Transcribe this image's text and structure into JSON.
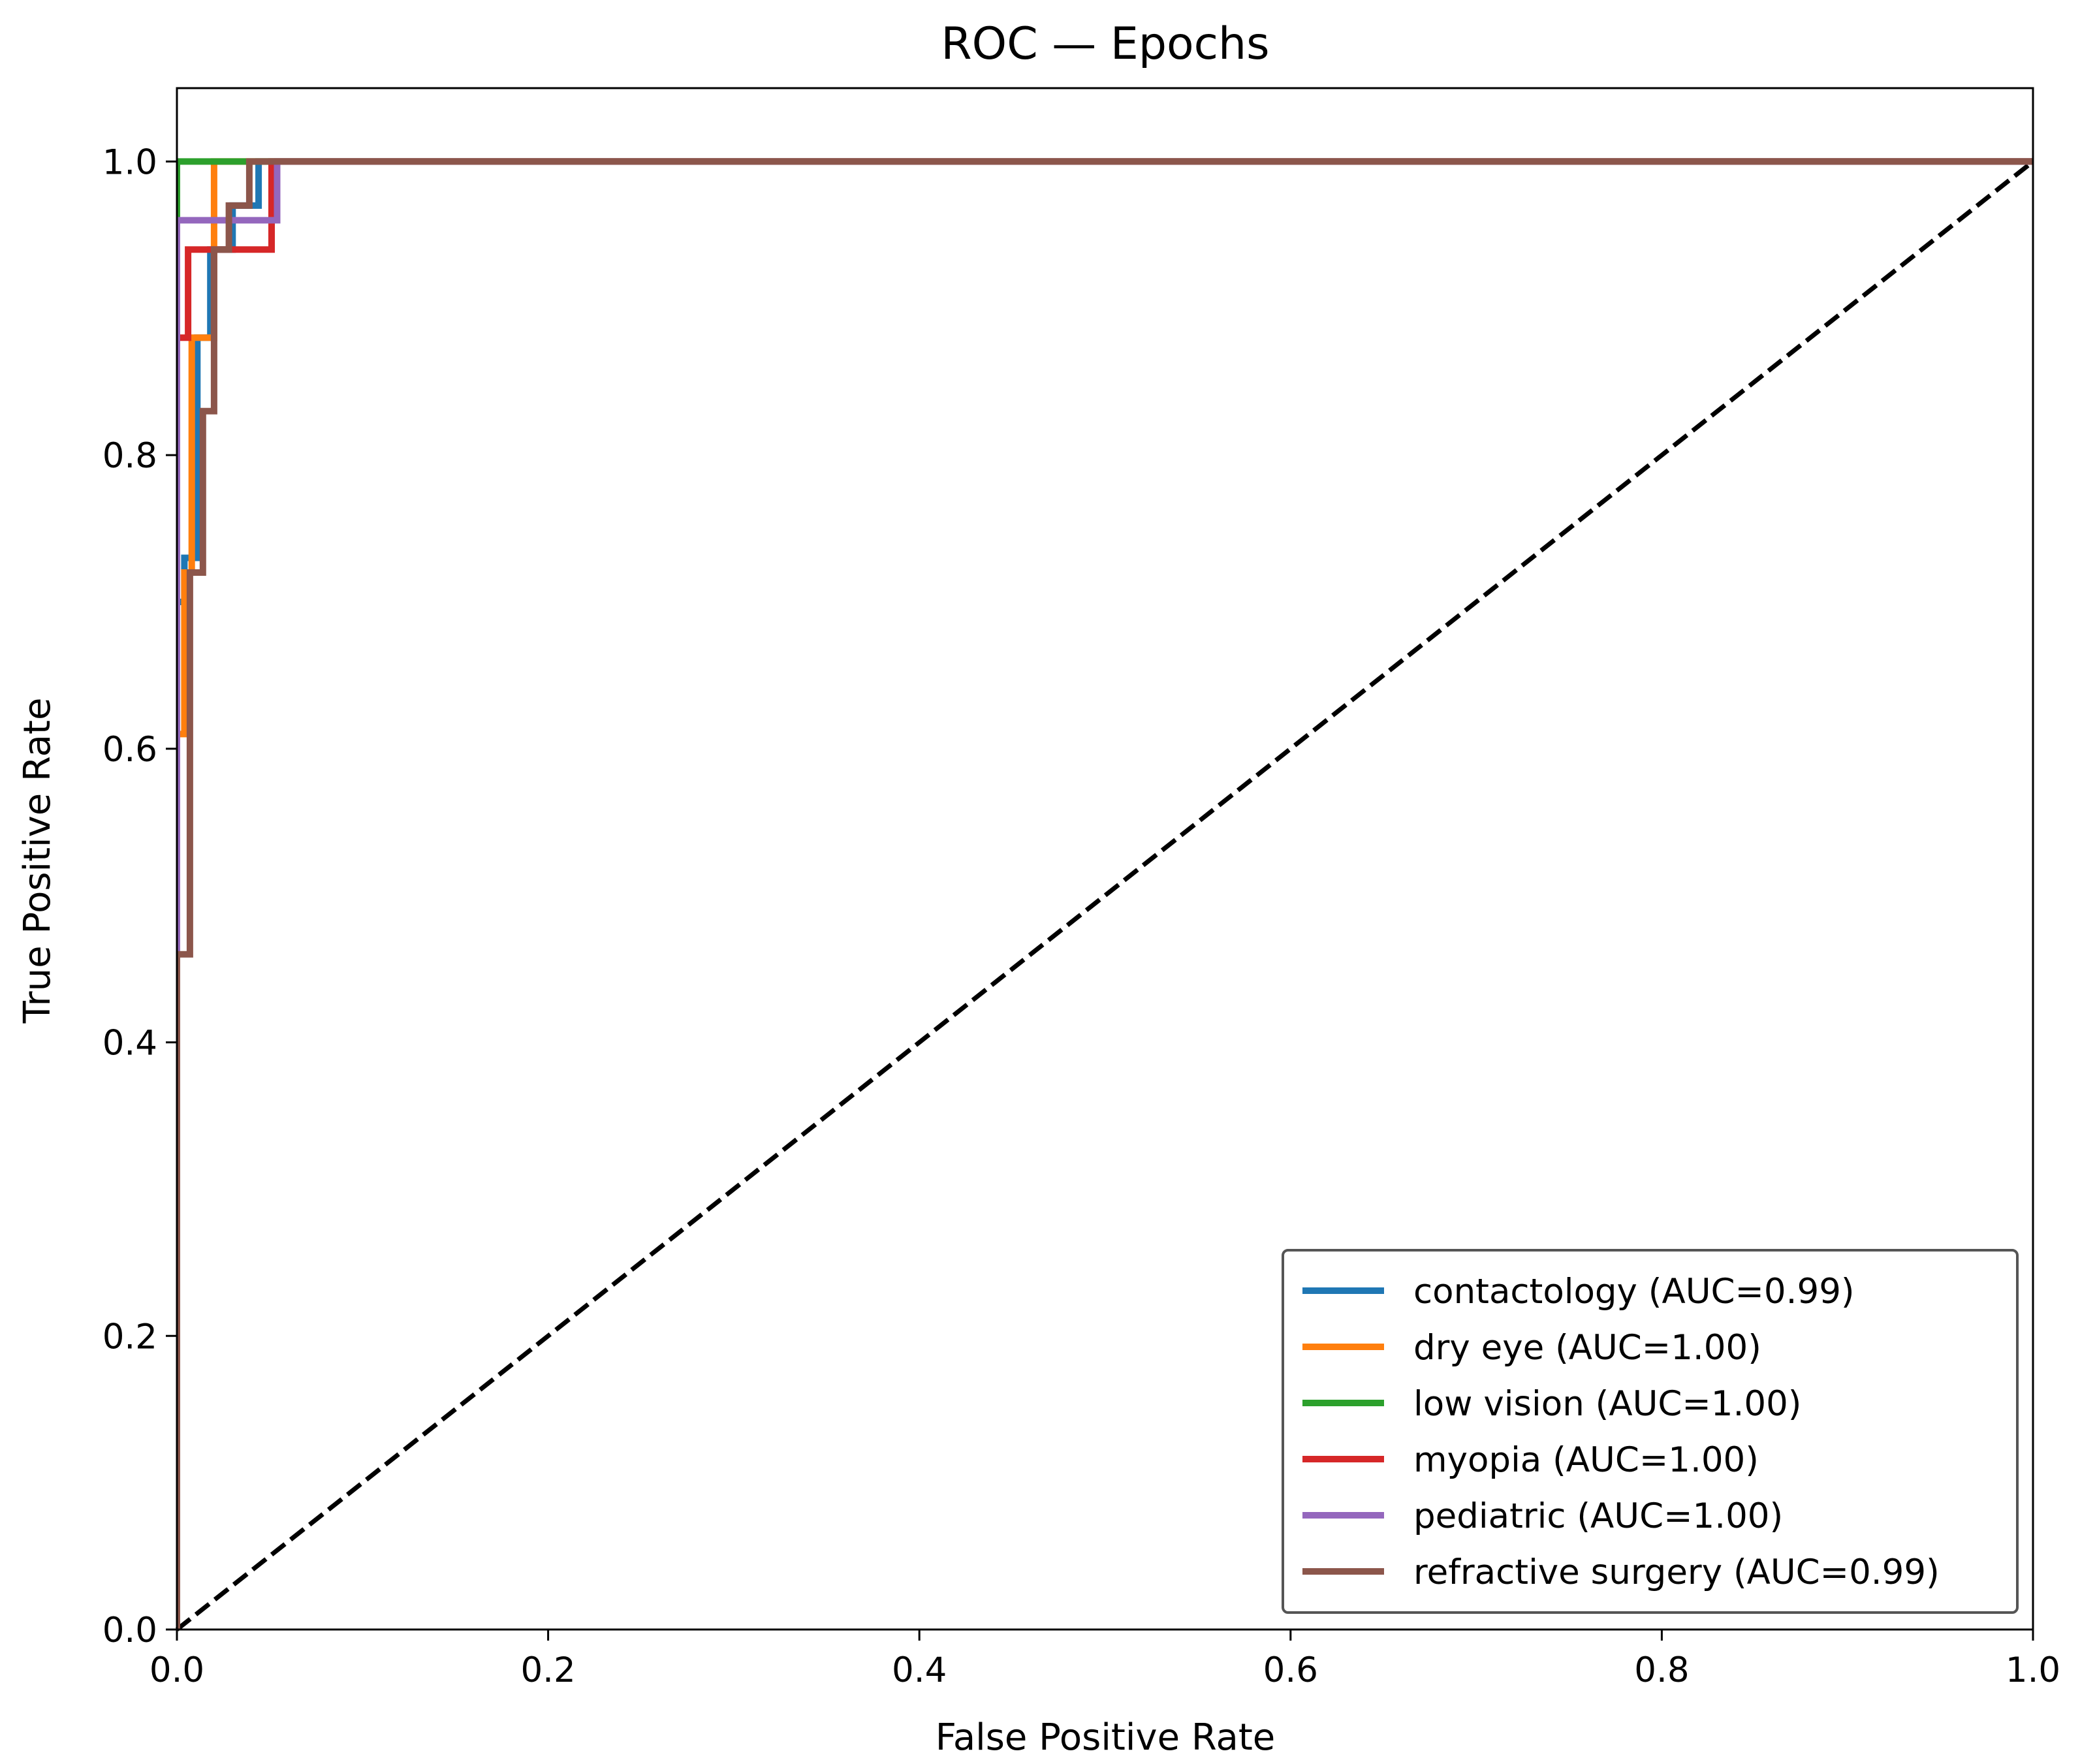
{
  "chart_data": {
    "type": "line",
    "title": "ROC — Epochs",
    "xlabel": "False Positive Rate",
    "ylabel": "True Positive Rate",
    "xlim": [
      0.0,
      1.0
    ],
    "ylim": [
      0.0,
      1.05
    ],
    "xticks": [
      "0.0",
      "0.2",
      "0.4",
      "0.6",
      "0.8",
      "1.0"
    ],
    "yticks": [
      "0.0",
      "0.2",
      "0.4",
      "0.6",
      "0.8",
      "1.0"
    ],
    "grid": false,
    "legend_position": "lower-right",
    "chance_line": {
      "x": [
        0.0,
        1.0
      ],
      "y": [
        0.0,
        1.0
      ],
      "style": "dashed",
      "color": "#000000"
    },
    "series": [
      {
        "name": "contactology (AUC=0.99)",
        "color": "#1f77b4",
        "x": [
          0.0,
          0.0,
          0.004,
          0.004,
          0.011,
          0.011,
          0.018,
          0.018,
          0.03,
          0.03,
          0.044,
          0.044,
          1.0
        ],
        "y": [
          0.0,
          0.7,
          0.7,
          0.73,
          0.73,
          0.88,
          0.88,
          0.94,
          0.94,
          0.97,
          0.97,
          1.0,
          1.0
        ]
      },
      {
        "name": "dry eye (AUC=1.00)",
        "color": "#ff7f0e",
        "x": [
          0.0,
          0.0,
          0.004,
          0.004,
          0.008,
          0.008,
          0.02,
          0.02,
          1.0
        ],
        "y": [
          0.0,
          0.61,
          0.61,
          0.72,
          0.72,
          0.88,
          0.88,
          1.0,
          1.0
        ]
      },
      {
        "name": "low vision (AUC=1.00)",
        "color": "#2ca02c",
        "x": [
          0.0,
          0.0,
          1.0
        ],
        "y": [
          0.0,
          1.0,
          1.0
        ]
      },
      {
        "name": "myopia (AUC=1.00)",
        "color": "#d62728",
        "x": [
          0.0,
          0.0,
          0.006,
          0.006,
          0.051,
          0.051,
          1.0
        ],
        "y": [
          0.0,
          0.88,
          0.88,
          0.94,
          0.94,
          1.0,
          1.0
        ]
      },
      {
        "name": "pediatric (AUC=1.00)",
        "color": "#9467bd",
        "x": [
          0.0,
          0.0,
          0.054,
          0.054,
          1.0
        ],
        "y": [
          0.0,
          0.96,
          0.96,
          1.0,
          1.0
        ]
      },
      {
        "name": "refractive surgery (AUC=0.99)",
        "color": "#8c564b",
        "x": [
          0.0,
          0.0,
          0.007,
          0.007,
          0.014,
          0.014,
          0.02,
          0.02,
          0.028,
          0.028,
          0.039,
          0.039,
          1.0
        ],
        "y": [
          0.0,
          0.46,
          0.46,
          0.72,
          0.72,
          0.83,
          0.83,
          0.94,
          0.94,
          0.97,
          0.97,
          1.0,
          1.0
        ]
      }
    ]
  }
}
